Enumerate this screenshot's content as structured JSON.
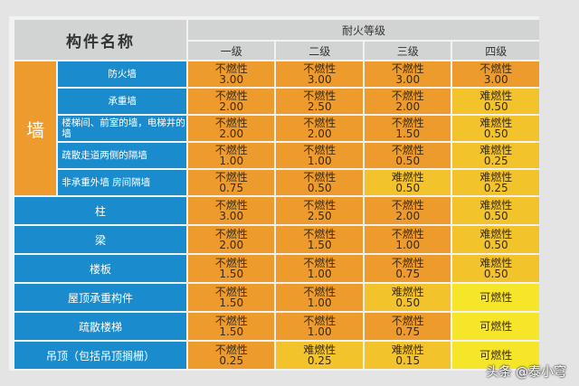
{
  "header": {
    "name": "构件名称",
    "rating": "耐火等级",
    "grades": [
      "一级",
      "二级",
      "三级",
      "四级"
    ]
  },
  "wall_group": {
    "label": "墙",
    "rows": [
      {
        "name": "防火墙",
        "cells": [
          [
            "不燃性",
            "3.00",
            "orange"
          ],
          [
            "不燃性",
            "3.00",
            "orange"
          ],
          [
            "不燃性",
            "3.00",
            "orange"
          ],
          [
            "不燃性",
            "3.00",
            "orange"
          ]
        ]
      },
      {
        "name": "承重墙",
        "cells": [
          [
            "不燃性",
            "2.00",
            "orange"
          ],
          [
            "不燃性",
            "2.50",
            "orange"
          ],
          [
            "不燃性",
            "2.00",
            "orange"
          ],
          [
            "难燃性",
            "0.50",
            "amber"
          ]
        ]
      },
      {
        "name": "楼梯间、前室的墙，电梯井的墙",
        "cells": [
          [
            "不燃性",
            "2.00",
            "orange"
          ],
          [
            "不燃性",
            "2.00",
            "orange"
          ],
          [
            "不燃性",
            "1.50",
            "orange"
          ],
          [
            "难燃性",
            "0.50",
            "amber"
          ]
        ]
      },
      {
        "name": "疏散走道两侧的隔墙",
        "cells": [
          [
            "不燃性",
            "1.00",
            "orange"
          ],
          [
            "不燃性",
            "1.00",
            "orange"
          ],
          [
            "不燃性",
            "0.50",
            "orange"
          ],
          [
            "难燃性",
            "0.25",
            "amber"
          ]
        ]
      },
      {
        "name": "非承重外墙 房间隔墙",
        "cells": [
          [
            "不燃性",
            "0.75",
            "orange"
          ],
          [
            "不燃性",
            "0.50",
            "orange"
          ],
          [
            "难燃性",
            "0.50",
            "amber"
          ],
          [
            "难燃性",
            "0.25",
            "amber"
          ]
        ]
      }
    ]
  },
  "other_rows": [
    {
      "name": "柱",
      "cells": [
        [
          "不燃性",
          "3.00",
          "orange"
        ],
        [
          "不燃性",
          "2.50",
          "orange"
        ],
        [
          "不燃性",
          "2.00",
          "orange"
        ],
        [
          "难燃性",
          "0.50",
          "amber"
        ]
      ]
    },
    {
      "name": "梁",
      "cells": [
        [
          "不燃性",
          "2.00",
          "orange"
        ],
        [
          "不燃性",
          "1.50",
          "orange"
        ],
        [
          "不燃性",
          "1.00",
          "orange"
        ],
        [
          "难燃性",
          "0.50",
          "amber"
        ]
      ]
    },
    {
      "name": "楼板",
      "cells": [
        [
          "不燃性",
          "1.50",
          "orange"
        ],
        [
          "不燃性",
          "1.00",
          "orange"
        ],
        [
          "不燃性",
          "0.75",
          "orange"
        ],
        [
          "难燃性",
          "0.50",
          "amber"
        ]
      ]
    },
    {
      "name": "屋顶承重构件",
      "cells": [
        [
          "不燃性",
          "1.50",
          "orange"
        ],
        [
          "不燃性",
          "1.00",
          "orange"
        ],
        [
          "难燃性",
          "0.50",
          "amber"
        ],
        [
          "可燃性",
          "",
          "yellow"
        ]
      ]
    },
    {
      "name": "疏散楼梯",
      "cells": [
        [
          "不燃性",
          "1.50",
          "orange"
        ],
        [
          "不燃性",
          "1.00",
          "orange"
        ],
        [
          "不燃性",
          "0.75",
          "orange"
        ],
        [
          "可燃性",
          "",
          "yellow"
        ]
      ]
    },
    {
      "name": "吊顶（包括吊顶搁栅）",
      "cells": [
        [
          "不燃性",
          "0.25",
          "orange"
        ],
        [
          "难燃性",
          "0.25",
          "amber"
        ],
        [
          "难燃性",
          "0.15",
          "amber"
        ],
        [
          "可燃性",
          "",
          "yellow"
        ]
      ]
    }
  ],
  "colors": {
    "orange": "#ee9b2d",
    "amber": "#f2c32a",
    "yellow": "#f6e62a",
    "blue": "#1a8ccd",
    "header": "#d2d3d3"
  },
  "watermark": "头条 @泰小穹"
}
